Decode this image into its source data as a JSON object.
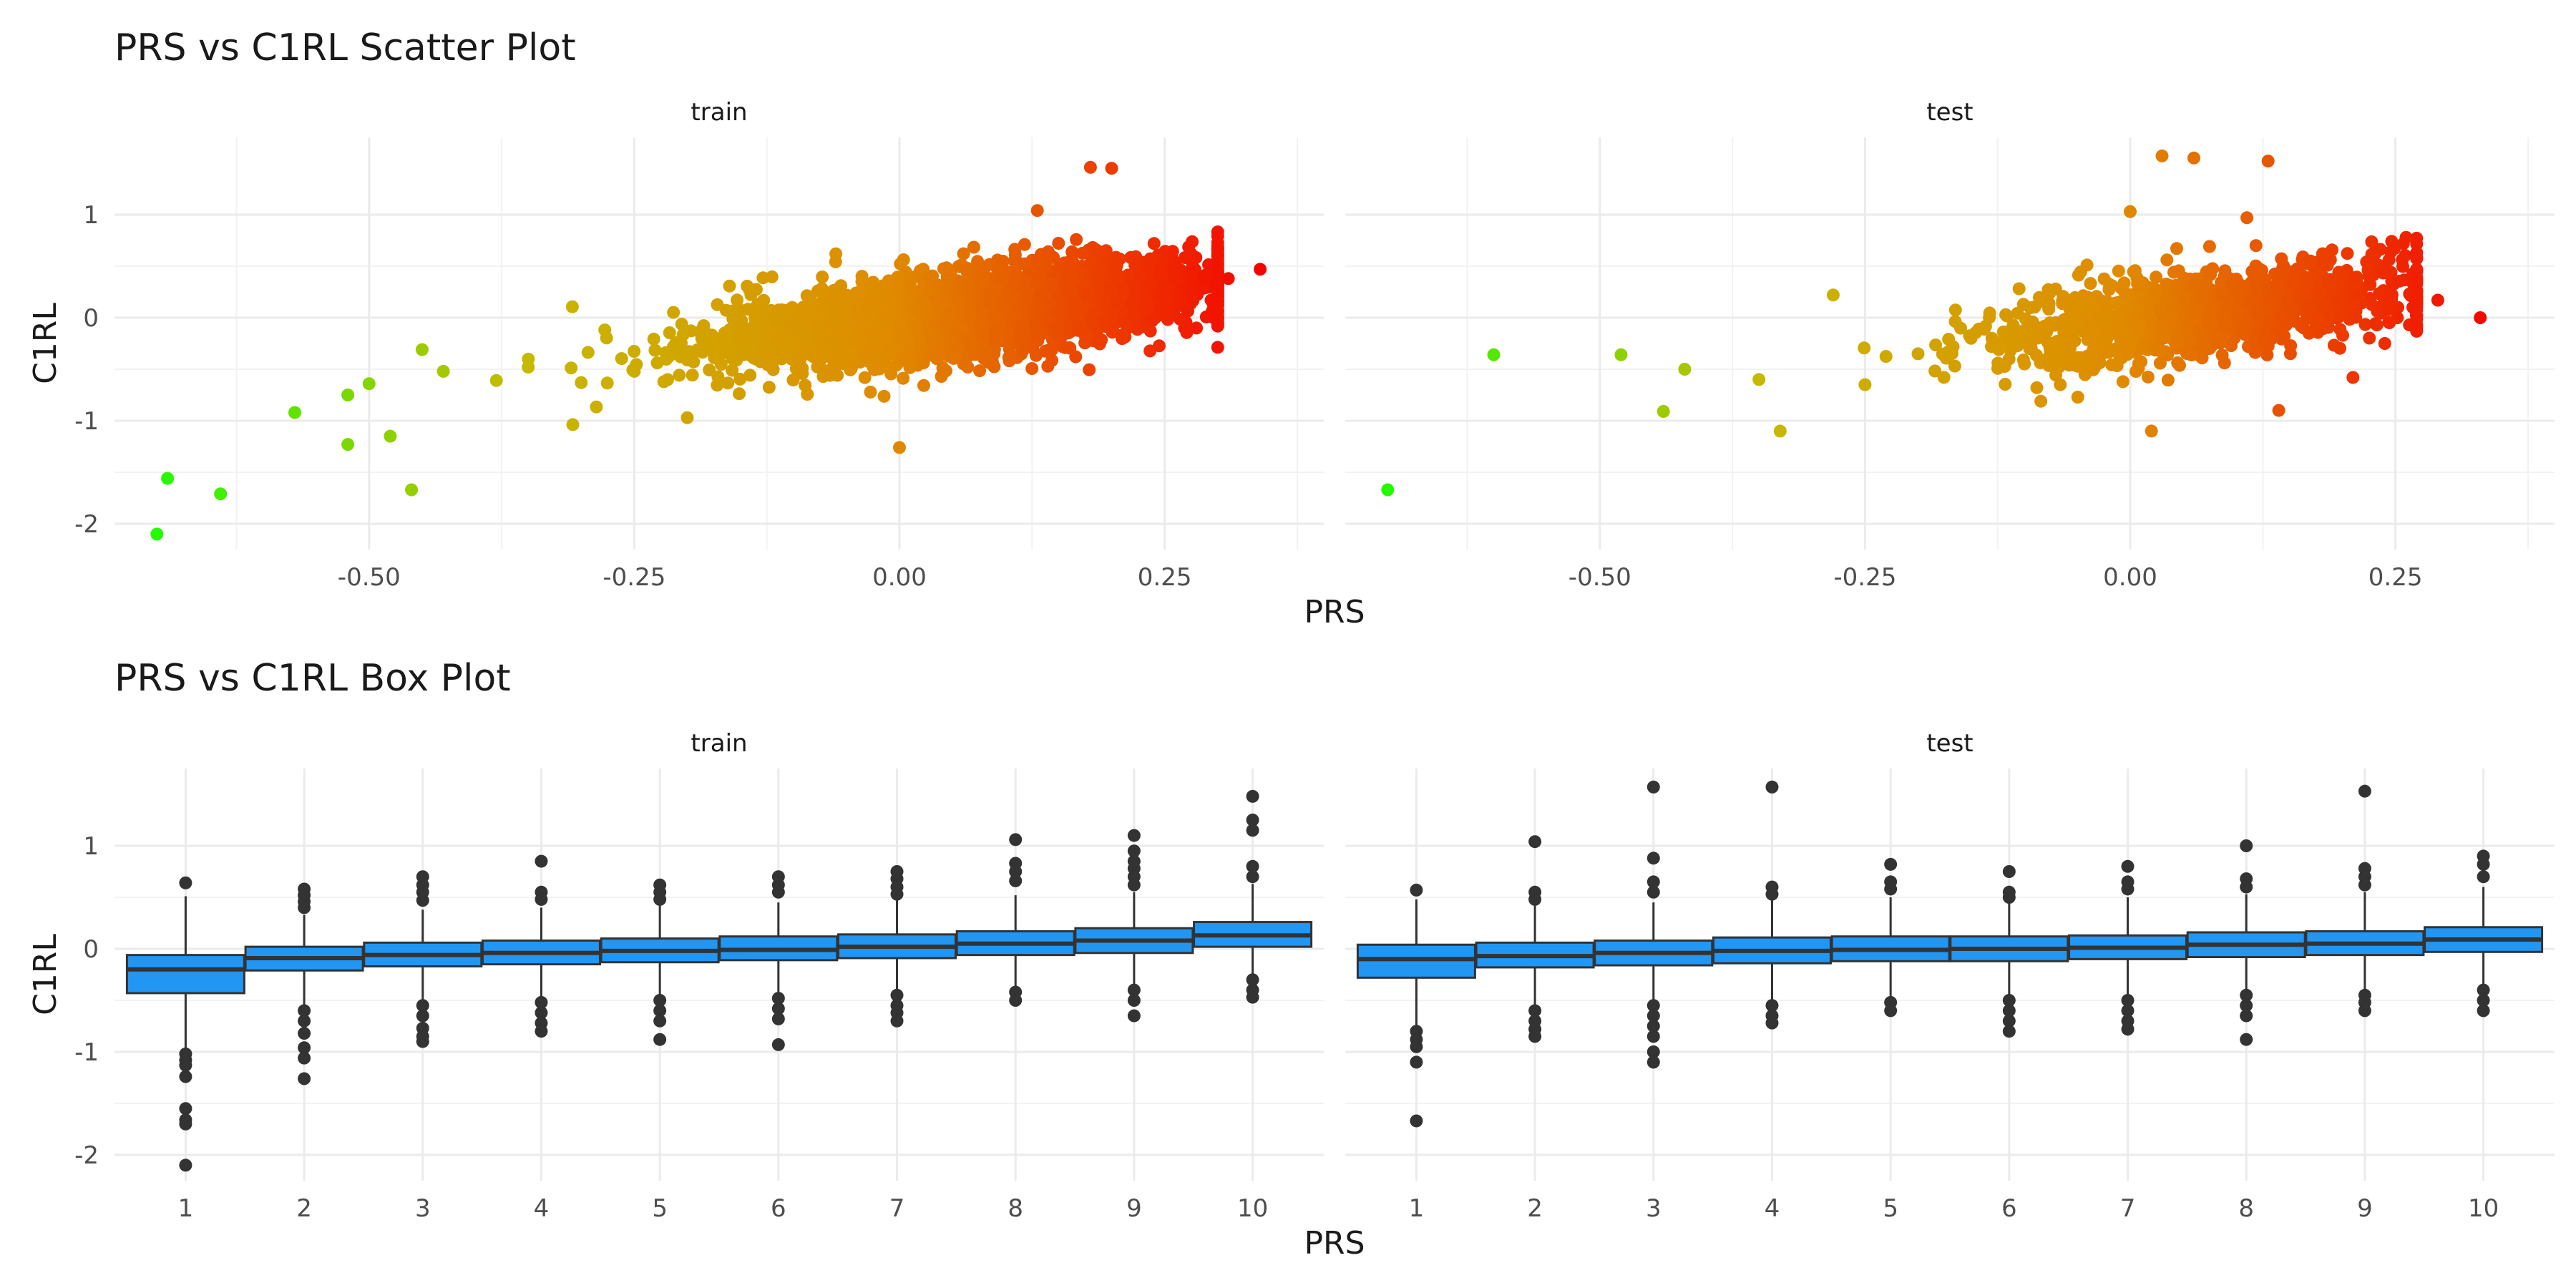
{
  "chart_data": [
    {
      "type": "scatter",
      "title": "PRS vs C1RL Scatter Plot",
      "xlabel": "PRS",
      "ylabel": "C1RL",
      "xlim": [
        -0.74,
        0.4
      ],
      "ylim": [
        -2.25,
        1.75
      ],
      "xticks": [
        -0.5,
        -0.25,
        0.0,
        0.25
      ],
      "xtick_labels": [
        "-0.50",
        "-0.25",
        "0.00",
        "0.25"
      ],
      "yticks": [
        -2,
        -1,
        0,
        1
      ],
      "ytick_labels": [
        "-2",
        "-1",
        "0",
        "1"
      ],
      "grid": true,
      "color_scale": [
        "#1aff00",
        "#c4bc00",
        "#e08a00",
        "#f50000"
      ],
      "panels": [
        {
          "name": "train",
          "points": [
            [
              -0.7,
              -2.1
            ],
            [
              -0.69,
              -1.56
            ],
            [
              -0.64,
              -1.71
            ],
            [
              -0.57,
              -0.92
            ],
            [
              -0.52,
              -1.23
            ],
            [
              -0.46,
              -1.67
            ],
            [
              -0.52,
              -0.75
            ],
            [
              -0.48,
              -1.15
            ],
            [
              -0.5,
              -0.64
            ],
            [
              -0.45,
              -0.31
            ],
            [
              -0.43,
              -0.52
            ],
            [
              -0.38,
              -0.61
            ],
            [
              -0.35,
              -0.48
            ],
            [
              -0.3,
              -0.63
            ],
            [
              -0.25,
              -0.52
            ],
            [
              -0.2,
              -0.41
            ],
            [
              -0.15,
              -0.32
            ],
            [
              -0.1,
              -0.2
            ],
            [
              -0.05,
              -0.12
            ],
            [
              0.0,
              -0.05
            ],
            [
              0.05,
              0.05
            ],
            [
              0.1,
              0.1
            ],
            [
              0.15,
              0.2
            ],
            [
              0.2,
              0.25
            ],
            [
              0.25,
              0.3
            ],
            [
              0.18,
              1.46
            ],
            [
              0.2,
              1.45
            ],
            [
              0.31,
              0.38
            ],
            [
              0.34,
              0.47
            ],
            [
              0.28,
              -0.1
            ],
            [
              0.3,
              0.28
            ],
            [
              0.0,
              -1.26
            ],
            [
              -0.2,
              -0.97
            ],
            [
              -0.06,
              0.62
            ],
            [
              0.13,
              1.04
            ],
            [
              0.24,
              0.72
            ]
          ]
        },
        {
          "name": "test",
          "points": [
            [
              -0.7,
              -1.67
            ],
            [
              -0.6,
              -0.36
            ],
            [
              -0.48,
              -0.36
            ],
            [
              -0.44,
              -0.91
            ],
            [
              -0.42,
              -0.5
            ],
            [
              -0.35,
              -0.6
            ],
            [
              -0.33,
              -1.1
            ],
            [
              -0.28,
              0.22
            ],
            [
              -0.25,
              -0.65
            ],
            [
              -0.2,
              -0.35
            ],
            [
              -0.15,
              -0.2
            ],
            [
              -0.1,
              -0.15
            ],
            [
              -0.05,
              -0.1
            ],
            [
              0.0,
              -0.05
            ],
            [
              0.05,
              0.0
            ],
            [
              0.1,
              0.05
            ],
            [
              0.15,
              0.1
            ],
            [
              0.2,
              0.15
            ],
            [
              0.03,
              1.57
            ],
            [
              0.06,
              1.55
            ],
            [
              0.13,
              1.52
            ],
            [
              0.33,
              0.0
            ],
            [
              0.29,
              0.17
            ],
            [
              0.26,
              0.78
            ],
            [
              0.02,
              -1.1
            ],
            [
              0.21,
              -0.58
            ],
            [
              0.0,
              1.03
            ],
            [
              0.11,
              0.97
            ],
            [
              0.14,
              -0.9
            ],
            [
              0.24,
              -0.25
            ]
          ]
        }
      ]
    },
    {
      "type": "box",
      "title": "PRS vs C1RL Box Plot",
      "xlabel": "PRS",
      "ylabel": "C1RL",
      "categories": [
        "1",
        "2",
        "3",
        "4",
        "5",
        "6",
        "7",
        "8",
        "9",
        "10"
      ],
      "ylim": [
        -2.25,
        1.75
      ],
      "yticks": [
        -2,
        -1,
        0,
        1
      ],
      "ytick_labels": [
        "-2",
        "-1",
        "0",
        "1"
      ],
      "grid": true,
      "box_color": "#2196f3",
      "panels": [
        {
          "name": "train",
          "boxes": [
            {
              "q1": -0.43,
              "median": -0.2,
              "q3": -0.06,
              "whislo": -0.98,
              "whishi": 0.51,
              "outliers": [
                0.64,
                -1.02,
                -1.08,
                -1.13,
                -1.24,
                -1.55,
                -1.66,
                -1.7,
                -2.1
              ]
            },
            {
              "q1": -0.21,
              "median": -0.09,
              "q3": 0.02,
              "whislo": -0.55,
              "whishi": 0.33,
              "outliers": [
                0.58,
                0.52,
                0.46,
                0.4,
                -0.6,
                -0.7,
                -0.82,
                -0.96,
                -1.06,
                -1.26
              ]
            },
            {
              "q1": -0.17,
              "median": -0.06,
              "q3": 0.06,
              "whislo": -0.5,
              "whishi": 0.38,
              "outliers": [
                0.7,
                0.62,
                0.55,
                0.47,
                -0.55,
                -0.65,
                -0.77,
                -0.85,
                -0.9
              ]
            },
            {
              "q1": -0.15,
              "median": -0.04,
              "q3": 0.08,
              "whislo": -0.48,
              "whishi": 0.4,
              "outliers": [
                0.85,
                0.55,
                0.48,
                -0.52,
                -0.62,
                -0.72,
                -0.8
              ]
            },
            {
              "q1": -0.13,
              "median": -0.02,
              "q3": 0.1,
              "whislo": -0.45,
              "whishi": 0.42,
              "outliers": [
                0.62,
                0.55,
                0.48,
                -0.5,
                -0.6,
                -0.7,
                -0.88
              ]
            },
            {
              "q1": -0.11,
              "median": -0.01,
              "q3": 0.12,
              "whislo": -0.43,
              "whishi": 0.45,
              "outliers": [
                0.7,
                0.62,
                0.55,
                -0.48,
                -0.58,
                -0.68,
                -0.93
              ]
            },
            {
              "q1": -0.09,
              "median": 0.02,
              "q3": 0.14,
              "whislo": -0.4,
              "whishi": 0.48,
              "outliers": [
                0.75,
                0.68,
                0.6,
                0.53,
                -0.45,
                -0.55,
                -0.62,
                -0.7
              ]
            },
            {
              "q1": -0.06,
              "median": 0.05,
              "q3": 0.17,
              "whislo": -0.38,
              "whishi": 0.52,
              "outliers": [
                1.06,
                0.83,
                0.75,
                0.66,
                -0.42,
                -0.5
              ]
            },
            {
              "q1": -0.04,
              "median": 0.08,
              "q3": 0.2,
              "whislo": -0.35,
              "whishi": 0.55,
              "outliers": [
                1.1,
                0.95,
                0.85,
                0.78,
                0.7,
                0.62,
                -0.4,
                -0.5,
                -0.65
              ]
            },
            {
              "q1": 0.02,
              "median": 0.13,
              "q3": 0.26,
              "whislo": -0.28,
              "whishi": 0.63,
              "outliers": [
                1.48,
                1.25,
                1.15,
                0.8,
                0.7,
                -0.3,
                -0.4,
                -0.47
              ]
            }
          ]
        },
        {
          "name": "test",
          "boxes": [
            {
              "q1": -0.28,
              "median": -0.1,
              "q3": 0.04,
              "whislo": -0.75,
              "whishi": 0.48,
              "outliers": [
                0.57,
                -0.8,
                -0.88,
                -0.95,
                -1.1,
                -1.67
              ]
            },
            {
              "q1": -0.18,
              "median": -0.07,
              "q3": 0.06,
              "whislo": -0.55,
              "whishi": 0.42,
              "outliers": [
                1.04,
                0.55,
                0.48,
                -0.6,
                -0.7,
                -0.78,
                -0.85
              ]
            },
            {
              "q1": -0.16,
              "median": -0.04,
              "q3": 0.08,
              "whislo": -0.52,
              "whishi": 0.45,
              "outliers": [
                1.57,
                0.88,
                0.65,
                0.55,
                -0.55,
                -0.65,
                -0.75,
                -0.85,
                -1.0,
                -1.1
              ]
            },
            {
              "q1": -0.14,
              "median": -0.02,
              "q3": 0.11,
              "whislo": -0.5,
              "whishi": 0.48,
              "outliers": [
                1.57,
                0.6,
                0.53,
                -0.55,
                -0.65,
                -0.72
              ]
            },
            {
              "q1": -0.12,
              "median": -0.01,
              "q3": 0.12,
              "whislo": -0.48,
              "whishi": 0.5,
              "outliers": [
                0.82,
                0.65,
                0.58,
                -0.52,
                -0.6
              ]
            },
            {
              "q1": -0.12,
              "median": 0.0,
              "q3": 0.12,
              "whislo": -0.46,
              "whishi": 0.48,
              "outliers": [
                0.75,
                0.55,
                0.5,
                -0.5,
                -0.6,
                -0.7,
                -0.8
              ]
            },
            {
              "q1": -0.1,
              "median": 0.01,
              "q3": 0.13,
              "whislo": -0.45,
              "whishi": 0.5,
              "outliers": [
                0.8,
                0.65,
                0.58,
                -0.5,
                -0.6,
                -0.7,
                -0.78
              ]
            },
            {
              "q1": -0.08,
              "median": 0.04,
              "q3": 0.16,
              "whislo": -0.42,
              "whishi": 0.53,
              "outliers": [
                1.0,
                0.68,
                0.6,
                -0.45,
                -0.55,
                -0.65,
                -0.88
              ]
            },
            {
              "q1": -0.06,
              "median": 0.05,
              "q3": 0.17,
              "whislo": -0.4,
              "whishi": 0.55,
              "outliers": [
                1.53,
                0.78,
                0.7,
                0.62,
                -0.45,
                -0.52,
                -0.6
              ]
            },
            {
              "q1": -0.03,
              "median": 0.09,
              "q3": 0.21,
              "whislo": -0.35,
              "whishi": 0.6,
              "outliers": [
                0.9,
                0.82,
                0.7,
                -0.4,
                -0.5,
                -0.6
              ]
            }
          ]
        }
      ]
    }
  ]
}
